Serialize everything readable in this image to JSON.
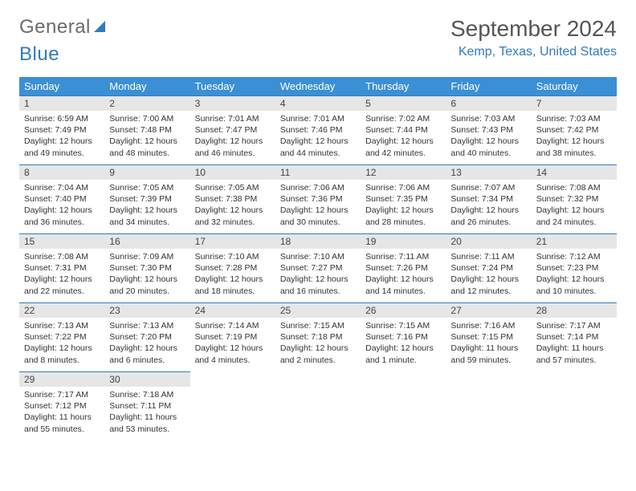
{
  "logo": {
    "word1": "General",
    "word2": "Blue"
  },
  "title": "September 2024",
  "location": "Kemp, Texas, United States",
  "colors": {
    "header_bg": "#3b8fd4",
    "header_fg": "#ffffff",
    "accent": "#2f7bbf",
    "daynum_bg": "#e6e6e6",
    "text": "#333333",
    "logo_gray": "#6b6b6b"
  },
  "weekdays": [
    "Sunday",
    "Monday",
    "Tuesday",
    "Wednesday",
    "Thursday",
    "Friday",
    "Saturday"
  ],
  "days": [
    {
      "n": "1",
      "sunrise": "6:59 AM",
      "sunset": "7:49 PM",
      "daylight": "12 hours and 49 minutes."
    },
    {
      "n": "2",
      "sunrise": "7:00 AM",
      "sunset": "7:48 PM",
      "daylight": "12 hours and 48 minutes."
    },
    {
      "n": "3",
      "sunrise": "7:01 AM",
      "sunset": "7:47 PM",
      "daylight": "12 hours and 46 minutes."
    },
    {
      "n": "4",
      "sunrise": "7:01 AM",
      "sunset": "7:46 PM",
      "daylight": "12 hours and 44 minutes."
    },
    {
      "n": "5",
      "sunrise": "7:02 AM",
      "sunset": "7:44 PM",
      "daylight": "12 hours and 42 minutes."
    },
    {
      "n": "6",
      "sunrise": "7:03 AM",
      "sunset": "7:43 PM",
      "daylight": "12 hours and 40 minutes."
    },
    {
      "n": "7",
      "sunrise": "7:03 AM",
      "sunset": "7:42 PM",
      "daylight": "12 hours and 38 minutes."
    },
    {
      "n": "8",
      "sunrise": "7:04 AM",
      "sunset": "7:40 PM",
      "daylight": "12 hours and 36 minutes."
    },
    {
      "n": "9",
      "sunrise": "7:05 AM",
      "sunset": "7:39 PM",
      "daylight": "12 hours and 34 minutes."
    },
    {
      "n": "10",
      "sunrise": "7:05 AM",
      "sunset": "7:38 PM",
      "daylight": "12 hours and 32 minutes."
    },
    {
      "n": "11",
      "sunrise": "7:06 AM",
      "sunset": "7:36 PM",
      "daylight": "12 hours and 30 minutes."
    },
    {
      "n": "12",
      "sunrise": "7:06 AM",
      "sunset": "7:35 PM",
      "daylight": "12 hours and 28 minutes."
    },
    {
      "n": "13",
      "sunrise": "7:07 AM",
      "sunset": "7:34 PM",
      "daylight": "12 hours and 26 minutes."
    },
    {
      "n": "14",
      "sunrise": "7:08 AM",
      "sunset": "7:32 PM",
      "daylight": "12 hours and 24 minutes."
    },
    {
      "n": "15",
      "sunrise": "7:08 AM",
      "sunset": "7:31 PM",
      "daylight": "12 hours and 22 minutes."
    },
    {
      "n": "16",
      "sunrise": "7:09 AM",
      "sunset": "7:30 PM",
      "daylight": "12 hours and 20 minutes."
    },
    {
      "n": "17",
      "sunrise": "7:10 AM",
      "sunset": "7:28 PM",
      "daylight": "12 hours and 18 minutes."
    },
    {
      "n": "18",
      "sunrise": "7:10 AM",
      "sunset": "7:27 PM",
      "daylight": "12 hours and 16 minutes."
    },
    {
      "n": "19",
      "sunrise": "7:11 AM",
      "sunset": "7:26 PM",
      "daylight": "12 hours and 14 minutes."
    },
    {
      "n": "20",
      "sunrise": "7:11 AM",
      "sunset": "7:24 PM",
      "daylight": "12 hours and 12 minutes."
    },
    {
      "n": "21",
      "sunrise": "7:12 AM",
      "sunset": "7:23 PM",
      "daylight": "12 hours and 10 minutes."
    },
    {
      "n": "22",
      "sunrise": "7:13 AM",
      "sunset": "7:22 PM",
      "daylight": "12 hours and 8 minutes."
    },
    {
      "n": "23",
      "sunrise": "7:13 AM",
      "sunset": "7:20 PM",
      "daylight": "12 hours and 6 minutes."
    },
    {
      "n": "24",
      "sunrise": "7:14 AM",
      "sunset": "7:19 PM",
      "daylight": "12 hours and 4 minutes."
    },
    {
      "n": "25",
      "sunrise": "7:15 AM",
      "sunset": "7:18 PM",
      "daylight": "12 hours and 2 minutes."
    },
    {
      "n": "26",
      "sunrise": "7:15 AM",
      "sunset": "7:16 PM",
      "daylight": "12 hours and 1 minute."
    },
    {
      "n": "27",
      "sunrise": "7:16 AM",
      "sunset": "7:15 PM",
      "daylight": "11 hours and 59 minutes."
    },
    {
      "n": "28",
      "sunrise": "7:17 AM",
      "sunset": "7:14 PM",
      "daylight": "11 hours and 57 minutes."
    },
    {
      "n": "29",
      "sunrise": "7:17 AM",
      "sunset": "7:12 PM",
      "daylight": "11 hours and 55 minutes."
    },
    {
      "n": "30",
      "sunrise": "7:18 AM",
      "sunset": "7:11 PM",
      "daylight": "11 hours and 53 minutes."
    }
  ],
  "labels": {
    "sunrise": "Sunrise:",
    "sunset": "Sunset:",
    "daylight": "Daylight:"
  },
  "layout": {
    "start_weekday": 0,
    "cols": 7
  }
}
